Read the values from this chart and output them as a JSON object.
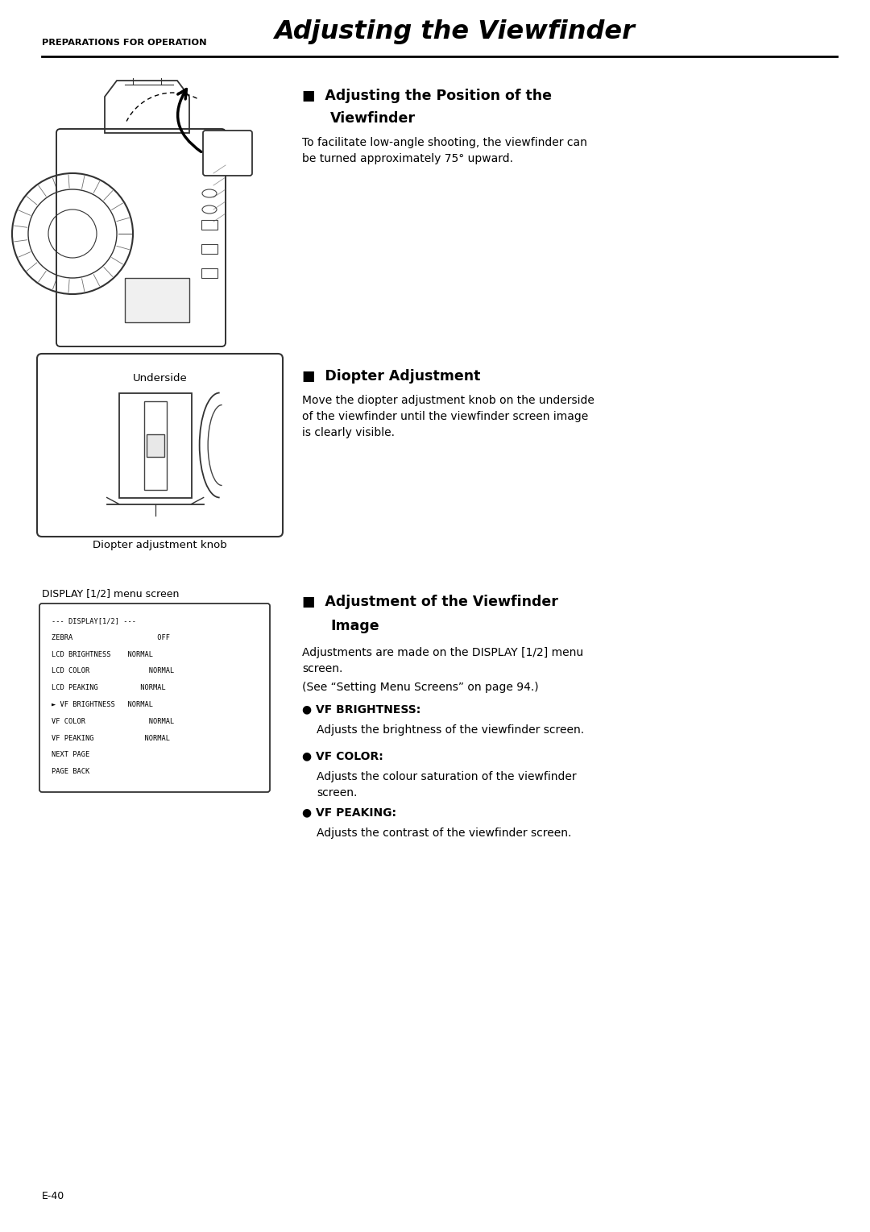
{
  "page_background": "#ffffff",
  "header_small_text": "PREPARATIONS FOR OPERATION",
  "header_large_text": "Adjusting the Viewfinder",
  "underside_label": "Underside",
  "diopter_label": "Diopter adjustment knob",
  "section1_title_line1": "■  Adjusting the Position of the",
  "section1_title_line2": "Viewfinder",
  "section1_body": "To facilitate low-angle shooting, the viewfinder can\nbe turned approximately 75° upward.",
  "section2_title": "■  Diopter Adjustment",
  "section2_body": "Move the diopter adjustment knob on the underside\nof the viewfinder until the viewfinder screen image\nis clearly visible.",
  "display_caption": "DISPLAY [1/2] menu screen",
  "display_menu_lines": [
    "--- DISPLAY[1/2] ---",
    "ZEBRA                    OFF",
    "LCD BRIGHTNESS    NORMAL",
    "LCD COLOR              NORMAL",
    "LCD PEAKING          NORMAL",
    "► VF BRIGHTNESS   NORMAL",
    "VF COLOR               NORMAL",
    "VF PEAKING            NORMAL",
    "NEXT PAGE",
    "PAGE BACK"
  ],
  "section3_title_line1": "■  Adjustment of the Viewfinder",
  "section3_title_line2": "Image",
  "section3_body1": "Adjustments are made on the DISPLAY [1/2] menu\nscreen.",
  "section3_body2": "(See “Setting Menu Screens” on page 94.)",
  "bullet1_title": "● VF BRIGHTNESS:",
  "bullet1_body": "Adjusts the brightness of the viewfinder screen.",
  "bullet2_title": "● VF COLOR:",
  "bullet2_body": "Adjusts the colour saturation of the viewfinder\nscreen.",
  "bullet3_title": "● VF PEAKING:",
  "bullet3_body": "Adjusts the contrast of the viewfinder screen.",
  "page_number": "E-40",
  "ml": 0.048,
  "mr": 0.962,
  "cs": 0.338
}
